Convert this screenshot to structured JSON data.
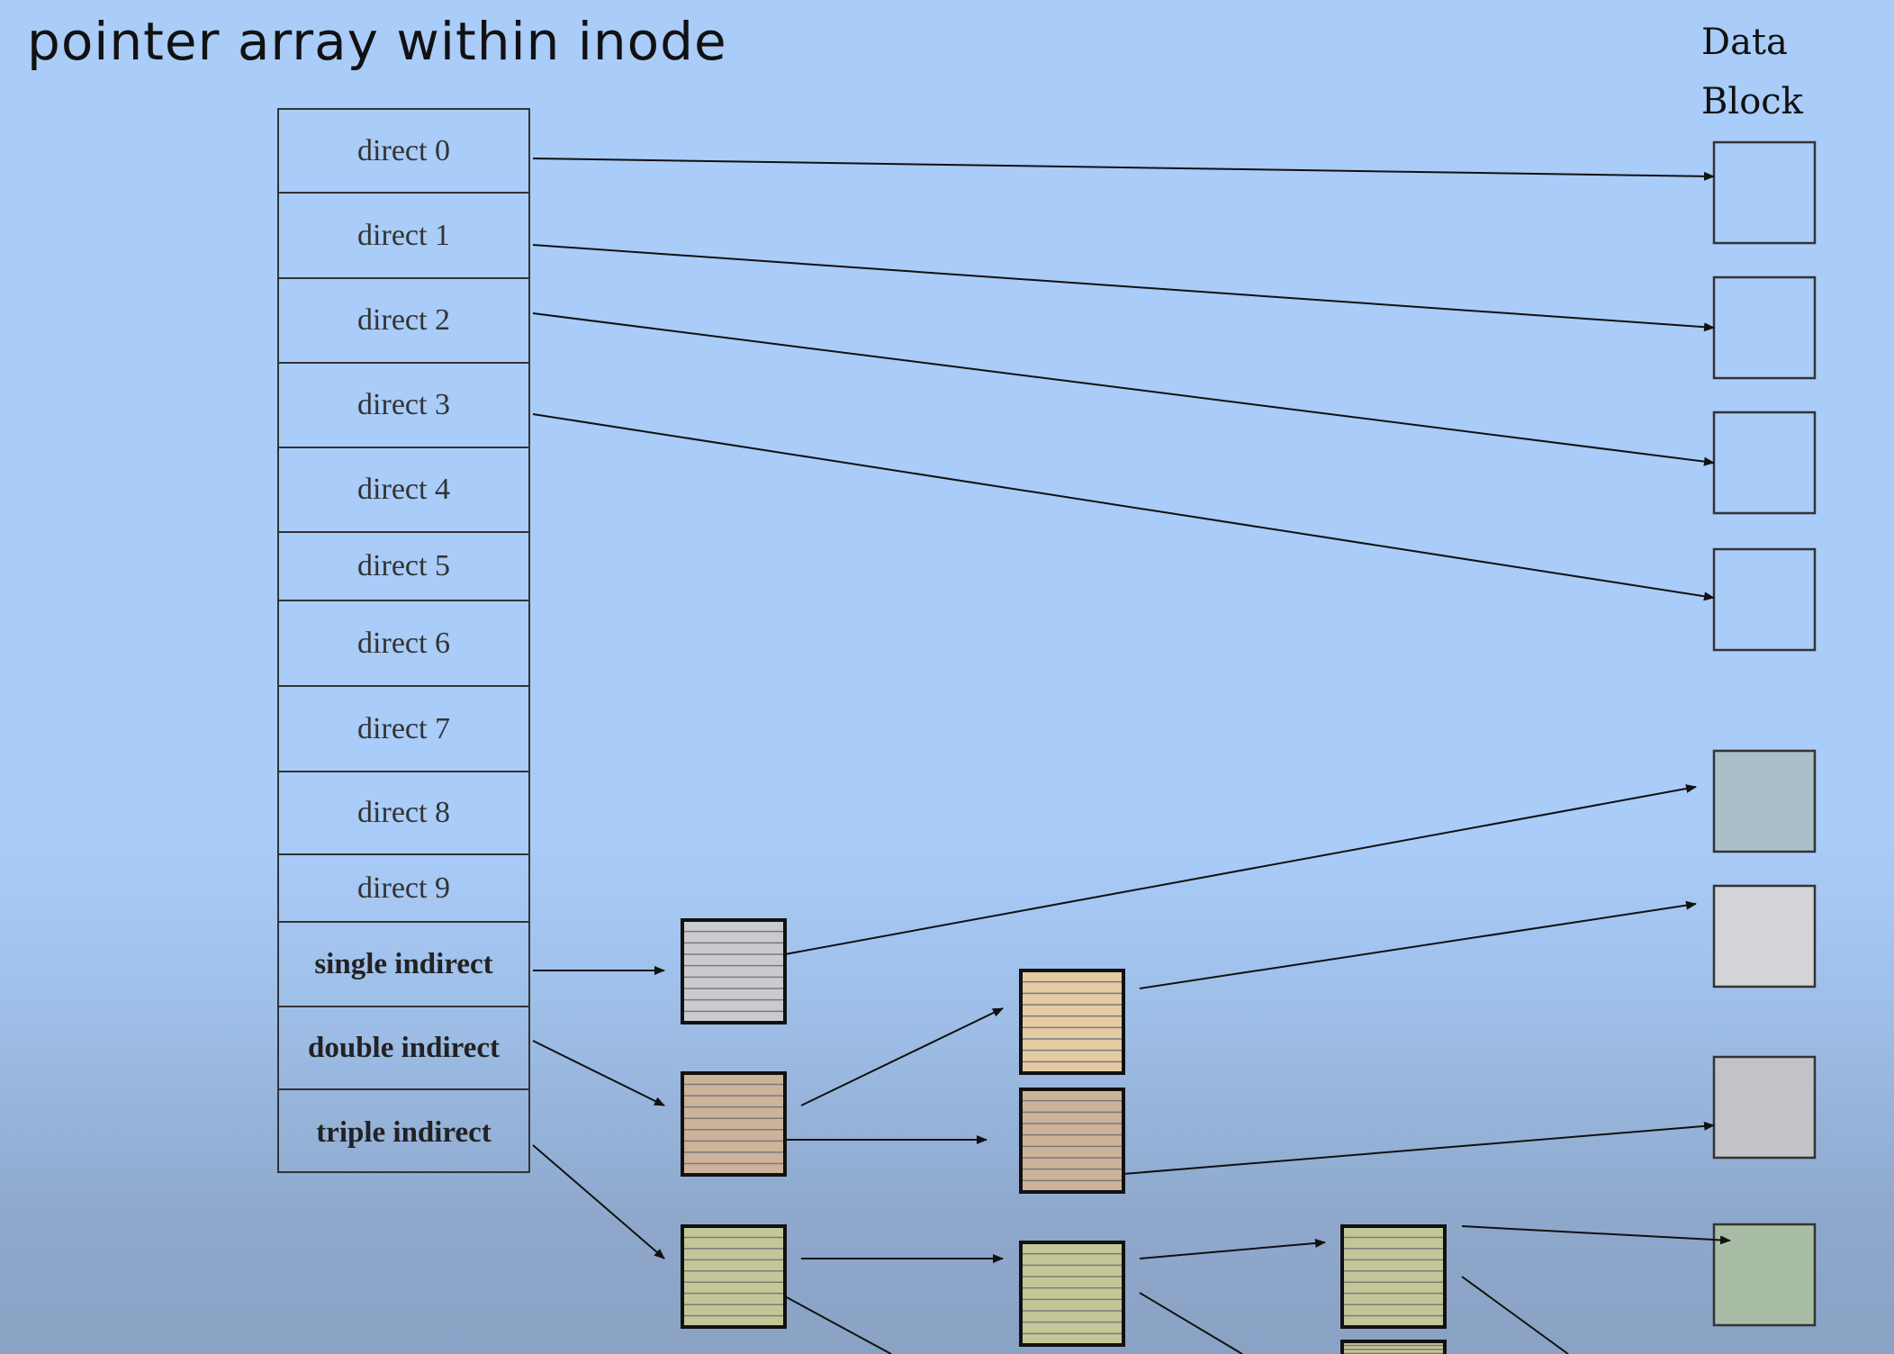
{
  "title": "pointer array within inode",
  "data_block_label": {
    "line1": "Data",
    "line2": "Block"
  },
  "inode_entries": [
    "direct 0",
    "direct 1",
    "direct 2",
    "direct 3",
    "direct 4",
    "direct 5",
    "direct 6",
    "direct 7",
    "direct 8",
    "direct 9",
    "single  indirect",
    "double indirect",
    "triple indirect"
  ],
  "colors": {
    "background": "#a9ccf8",
    "single_indirect_block": "#c9cbd1",
    "double_indirect_block": "#cdb39a",
    "double_indirect_child": "#e4cba3",
    "triple_indirect_block": "#c3c797",
    "data_block_single": "#a9c0c8",
    "data_block_double_a": "#d2d4d8",
    "data_block_double_b": "#c1c3c7",
    "data_block_triple": "#a9bca5"
  }
}
